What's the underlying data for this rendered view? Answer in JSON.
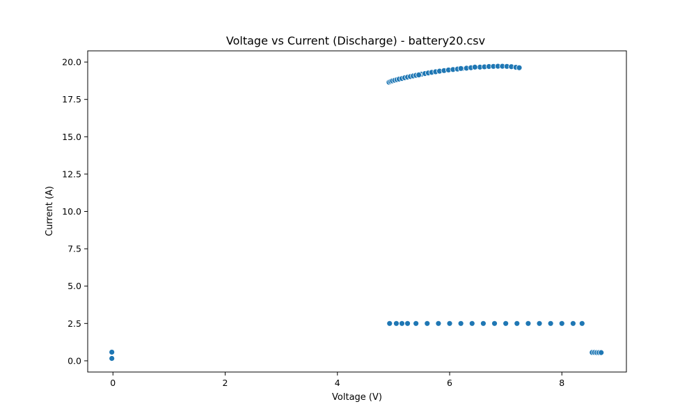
{
  "chart_data": {
    "type": "scatter",
    "title": "Voltage vs Current (Discharge) - battery20.csv",
    "xlabel": "Voltage (V)",
    "ylabel": "Current (A)",
    "xlim": [
      -0.45,
      9.15
    ],
    "ylim": [
      -0.75,
      20.75
    ],
    "xticks": [
      0,
      2,
      4,
      6,
      8
    ],
    "xtick_labels": [
      "0",
      "2",
      "4",
      "6",
      "8"
    ],
    "yticks": [
      0.0,
      2.5,
      5.0,
      7.5,
      10.0,
      12.5,
      15.0,
      17.5,
      20.0
    ],
    "ytick_labels": [
      "0.0",
      "2.5",
      "5.0",
      "7.5",
      "10.0",
      "12.5",
      "15.0",
      "17.5",
      "20.0"
    ],
    "grid": false,
    "legend": "none",
    "marker_color": "#1f77b4",
    "series": [
      {
        "values": [
          {
            "x": -0.02,
            "y": 0.58
          },
          {
            "x": -0.02,
            "y": 0.16
          },
          {
            "x": 4.92,
            "y": 18.65
          },
          {
            "x": 4.95,
            "y": 18.7
          },
          {
            "x": 4.98,
            "y": 18.74
          },
          {
            "x": 5.02,
            "y": 18.78
          },
          {
            "x": 5.06,
            "y": 18.82
          },
          {
            "x": 5.1,
            "y": 18.86
          },
          {
            "x": 5.15,
            "y": 18.9
          },
          {
            "x": 5.2,
            "y": 18.95
          },
          {
            "x": 5.25,
            "y": 18.99
          },
          {
            "x": 5.3,
            "y": 19.03
          },
          {
            "x": 5.35,
            "y": 19.07
          },
          {
            "x": 5.4,
            "y": 19.11
          },
          {
            "x": 5.45,
            "y": 19.15
          },
          {
            "x": 5.5,
            "y": 19.19
          },
          {
            "x": 5.56,
            "y": 19.23
          },
          {
            "x": 5.62,
            "y": 19.27
          },
          {
            "x": 5.68,
            "y": 19.31
          },
          {
            "x": 5.75,
            "y": 19.35
          },
          {
            "x": 5.82,
            "y": 19.39
          },
          {
            "x": 5.9,
            "y": 19.43
          },
          {
            "x": 5.98,
            "y": 19.47
          },
          {
            "x": 6.06,
            "y": 19.5
          },
          {
            "x": 6.14,
            "y": 19.53
          },
          {
            "x": 6.22,
            "y": 19.56
          },
          {
            "x": 6.3,
            "y": 19.59
          },
          {
            "x": 6.38,
            "y": 19.62
          },
          {
            "x": 6.46,
            "y": 19.64
          },
          {
            "x": 6.54,
            "y": 19.66
          },
          {
            "x": 6.62,
            "y": 19.68
          },
          {
            "x": 6.7,
            "y": 19.7
          },
          {
            "x": 6.78,
            "y": 19.71
          },
          {
            "x": 6.86,
            "y": 19.72
          },
          {
            "x": 6.94,
            "y": 19.72
          },
          {
            "x": 7.02,
            "y": 19.71
          },
          {
            "x": 7.1,
            "y": 19.69
          },
          {
            "x": 7.18,
            "y": 19.65
          },
          {
            "x": 7.24,
            "y": 19.62
          },
          {
            "x": 5.45,
            "y": 19.14
          },
          {
            "x": 6.2,
            "y": 19.57
          },
          {
            "x": 6.45,
            "y": 19.66
          },
          {
            "x": 4.93,
            "y": 2.5
          },
          {
            "x": 5.05,
            "y": 2.5
          },
          {
            "x": 5.15,
            "y": 2.5
          },
          {
            "x": 5.25,
            "y": 2.5
          },
          {
            "x": 5.4,
            "y": 2.5
          },
          {
            "x": 5.6,
            "y": 2.5
          },
          {
            "x": 5.8,
            "y": 2.5
          },
          {
            "x": 6.0,
            "y": 2.5
          },
          {
            "x": 6.2,
            "y": 2.5
          },
          {
            "x": 6.4,
            "y": 2.5
          },
          {
            "x": 6.6,
            "y": 2.5
          },
          {
            "x": 6.8,
            "y": 2.5
          },
          {
            "x": 7.0,
            "y": 2.5
          },
          {
            "x": 7.2,
            "y": 2.5
          },
          {
            "x": 7.4,
            "y": 2.5
          },
          {
            "x": 7.6,
            "y": 2.5
          },
          {
            "x": 7.8,
            "y": 2.5
          },
          {
            "x": 8.0,
            "y": 2.5
          },
          {
            "x": 8.2,
            "y": 2.5
          },
          {
            "x": 8.36,
            "y": 2.5
          },
          {
            "x": 8.54,
            "y": 0.56
          },
          {
            "x": 8.58,
            "y": 0.56
          },
          {
            "x": 8.62,
            "y": 0.55
          },
          {
            "x": 8.66,
            "y": 0.55
          },
          {
            "x": 8.7,
            "y": 0.55
          }
        ]
      }
    ]
  }
}
